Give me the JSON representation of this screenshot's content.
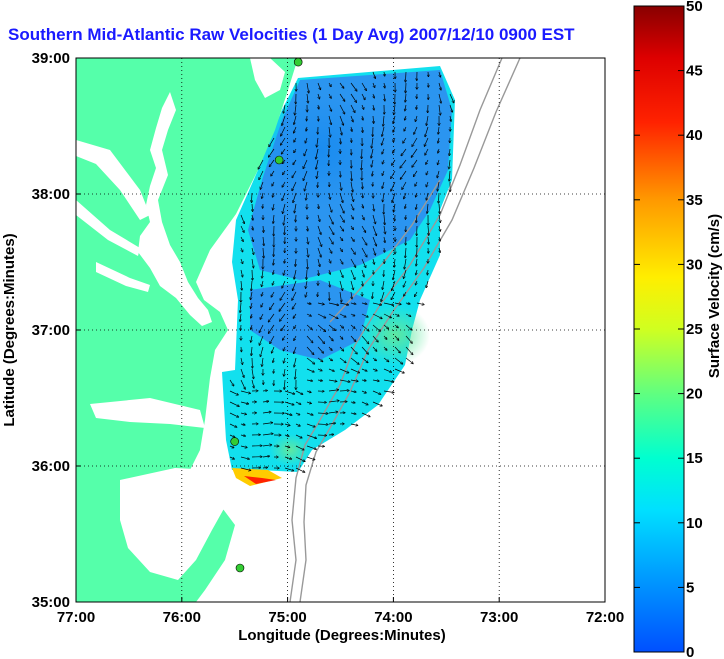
{
  "title": "Southern Mid-Atlantic Raw Velocities (1 Day Avg) 2007/12/10 0900 EST",
  "map": {
    "xlabel": "Longitude (Degrees:Minutes)",
    "ylabel": "Latitude (Degrees:Minutes)",
    "x_ticks": [
      "77:00",
      "76:00",
      "75:00",
      "74:00",
      "73:00",
      "72:00"
    ],
    "y_ticks": [
      "39:00",
      "38:00",
      "37:00",
      "36:00",
      "35:00"
    ],
    "lon_range": [
      -77,
      -72
    ],
    "lat_range": [
      35,
      39
    ],
    "grid": "dotted",
    "colors": {
      "land": "#55ffaa",
      "water": "#ffffff",
      "bathymetry": "#999999",
      "station": "#33cc33"
    }
  },
  "colorbar": {
    "label": "Surface Velocity (cm/s)",
    "range": [
      0,
      50
    ],
    "ticks": [
      "0",
      "5",
      "10",
      "15",
      "20",
      "25",
      "30",
      "35",
      "40",
      "45",
      "50"
    ]
  },
  "chart_data": {
    "type": "heatmap",
    "title": "Southern Mid-Atlantic Raw Velocities (1 Day Avg) 2007/12/10 0900 EST",
    "xlabel": "Longitude (Degrees:Minutes)",
    "ylabel": "Latitude (Degrees:Minutes)",
    "xlim": [
      -77,
      -72
    ],
    "ylim": [
      35,
      39
    ],
    "colorbar_label": "Surface Velocity (cm/s)",
    "colorbar_range": [
      0,
      50
    ],
    "stations": [
      {
        "lon": -74.9,
        "lat": 38.97
      },
      {
        "lon": -75.08,
        "lat": 38.25
      },
      {
        "lon": -75.5,
        "lat": 36.18
      },
      {
        "lon": -75.45,
        "lat": 35.25
      }
    ]
  }
}
